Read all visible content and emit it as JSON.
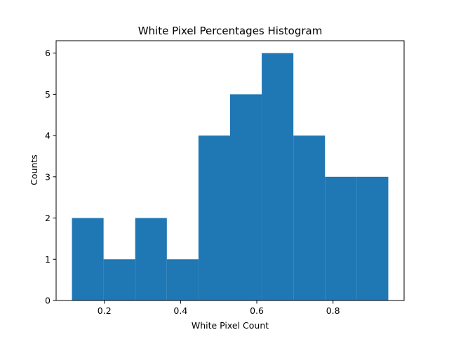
{
  "chart_data": {
    "type": "bar",
    "title": "White Pixel Percentages Histogram",
    "xlabel": "White Pixel Count",
    "ylabel": "Counts",
    "bin_edges": [
      0.115,
      0.198,
      0.281,
      0.364,
      0.447,
      0.53,
      0.613,
      0.696,
      0.779,
      0.862,
      0.945
    ],
    "values": [
      2,
      1,
      2,
      1,
      4,
      5,
      6,
      4,
      3,
      3
    ],
    "xlim": [
      0.0735,
      0.9865
    ],
    "ylim": [
      0,
      6.3
    ],
    "xticks": [
      0.2,
      0.4,
      0.6,
      0.8
    ],
    "xtick_labels": [
      "0.2",
      "0.4",
      "0.6",
      "0.8"
    ],
    "yticks": [
      0,
      1,
      2,
      3,
      4,
      5,
      6
    ],
    "ytick_labels": [
      "0",
      "1",
      "2",
      "3",
      "4",
      "5",
      "6"
    ],
    "bar_color": "#1f77b4",
    "grid": false,
    "legend": "none"
  }
}
